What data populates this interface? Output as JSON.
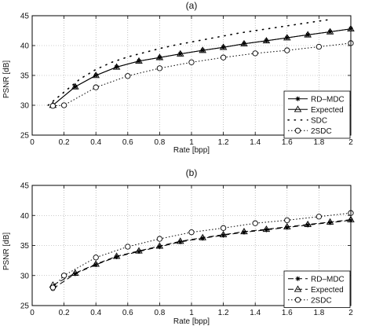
{
  "chart_data": [
    {
      "type": "line",
      "title": "(a)",
      "xlabel": "Rate [bpp]",
      "ylabel": "PSNR [dB]",
      "xlim": [
        0,
        2
      ],
      "ylim": [
        25,
        45
      ],
      "xticks": [
        0,
        0.2,
        0.4,
        0.6,
        0.8,
        1,
        1.2,
        1.4,
        1.6,
        1.8,
        2
      ],
      "yticks": [
        25,
        30,
        35,
        40,
        45
      ],
      "xtick_labels": [
        "0",
        "0.2",
        "0.4",
        "0.6",
        "0.8",
        "1",
        "1.2",
        "1.4",
        "1.6",
        "1.8",
        "2"
      ],
      "ytick_labels": [
        "25",
        "30",
        "35",
        "40",
        "45"
      ],
      "grid": true,
      "legend_position": "bottom-right",
      "series": [
        {
          "name": "RD–MDC",
          "style": "solid",
          "marker": "star",
          "x": [
            0.13,
            0.27,
            0.4,
            0.53,
            0.67,
            0.8,
            0.93,
            1.07,
            1.2,
            1.33,
            1.47,
            1.6,
            1.73,
            1.87,
            2.0
          ],
          "y": [
            30.0,
            33.1,
            35.0,
            36.4,
            37.4,
            38.0,
            38.6,
            39.2,
            39.7,
            40.3,
            40.8,
            41.3,
            41.8,
            42.3,
            42.8
          ]
        },
        {
          "name": "Expected",
          "style": "solid",
          "marker": "triangle",
          "x": [
            0.13,
            0.27,
            0.4,
            0.53,
            0.67,
            0.8,
            0.93,
            1.07,
            1.2,
            1.33,
            1.47,
            1.6,
            1.73,
            1.87,
            2.0
          ],
          "y": [
            30.0,
            33.1,
            35.0,
            36.4,
            37.4,
            38.0,
            38.6,
            39.2,
            39.7,
            40.3,
            40.8,
            41.3,
            41.8,
            42.3,
            42.8
          ]
        },
        {
          "name": "SDC",
          "style": "dots",
          "marker": "none",
          "x": [
            0.1,
            0.2,
            0.3,
            0.4,
            0.5,
            0.6,
            0.7,
            0.8,
            0.9,
            1.0,
            1.1,
            1.2,
            1.3,
            1.4,
            1.5,
            1.6,
            1.7,
            1.8,
            1.88
          ],
          "y": [
            30.0,
            32.2,
            34.4,
            36.0,
            37.2,
            38.1,
            38.8,
            39.5,
            40.1,
            40.6,
            41.1,
            41.6,
            42.1,
            42.5,
            42.9,
            43.3,
            43.7,
            44.1,
            44.4
          ]
        },
        {
          "name": "2SDC",
          "style": "dotted",
          "marker": "circle",
          "x": [
            0.13,
            0.2,
            0.4,
            0.6,
            0.8,
            1.0,
            1.2,
            1.4,
            1.6,
            1.8,
            2.0
          ],
          "y": [
            29.9,
            30.0,
            33.0,
            34.9,
            36.2,
            37.2,
            38.0,
            38.7,
            39.2,
            39.8,
            40.4
          ]
        }
      ]
    },
    {
      "type": "line",
      "title": "(b)",
      "xlabel": "Rate [bpp]",
      "ylabel": "PSNR [dB]",
      "xlim": [
        0,
        2
      ],
      "ylim": [
        25,
        45
      ],
      "xticks": [
        0,
        0.2,
        0.4,
        0.6,
        0.8,
        1,
        1.2,
        1.4,
        1.6,
        1.8,
        2
      ],
      "yticks": [
        25,
        30,
        35,
        40,
        45
      ],
      "xtick_labels": [
        "0",
        "0.2",
        "0.4",
        "0.6",
        "0.8",
        "1",
        "1.2",
        "1.4",
        "1.6",
        "1.8",
        "2"
      ],
      "ytick_labels": [
        "25",
        "30",
        "35",
        "40",
        "45"
      ],
      "grid": true,
      "legend_position": "bottom-right",
      "series": [
        {
          "name": "RD–MDC",
          "style": "dashed",
          "marker": "star",
          "x": [
            0.13,
            0.27,
            0.4,
            0.53,
            0.67,
            0.8,
            0.93,
            1.07,
            1.2,
            1.33,
            1.47,
            1.6,
            1.73,
            1.87,
            2.0
          ],
          "y": [
            27.8,
            30.3,
            31.8,
            33.1,
            34.0,
            34.8,
            35.6,
            36.2,
            36.7,
            37.2,
            37.6,
            38.0,
            38.4,
            38.8,
            39.2
          ]
        },
        {
          "name": "Expected",
          "style": "dashed",
          "marker": "triangle",
          "x": [
            0.13,
            0.27,
            0.4,
            0.53,
            0.67,
            0.8,
            0.93,
            1.07,
            1.2,
            1.33,
            1.47,
            1.6,
            1.73,
            1.87,
            2.0
          ],
          "y": [
            28.4,
            30.4,
            31.9,
            33.2,
            34.1,
            34.9,
            35.7,
            36.3,
            36.8,
            37.3,
            37.7,
            38.1,
            38.5,
            38.9,
            39.3
          ]
        },
        {
          "name": "2SDC",
          "style": "dotted",
          "marker": "circle",
          "x": [
            0.13,
            0.2,
            0.4,
            0.6,
            0.8,
            1.0,
            1.2,
            1.4,
            1.6,
            1.8,
            2.0
          ],
          "y": [
            28.0,
            30.0,
            33.0,
            34.8,
            36.1,
            37.2,
            37.9,
            38.7,
            39.2,
            39.8,
            40.4
          ]
        }
      ]
    }
  ]
}
